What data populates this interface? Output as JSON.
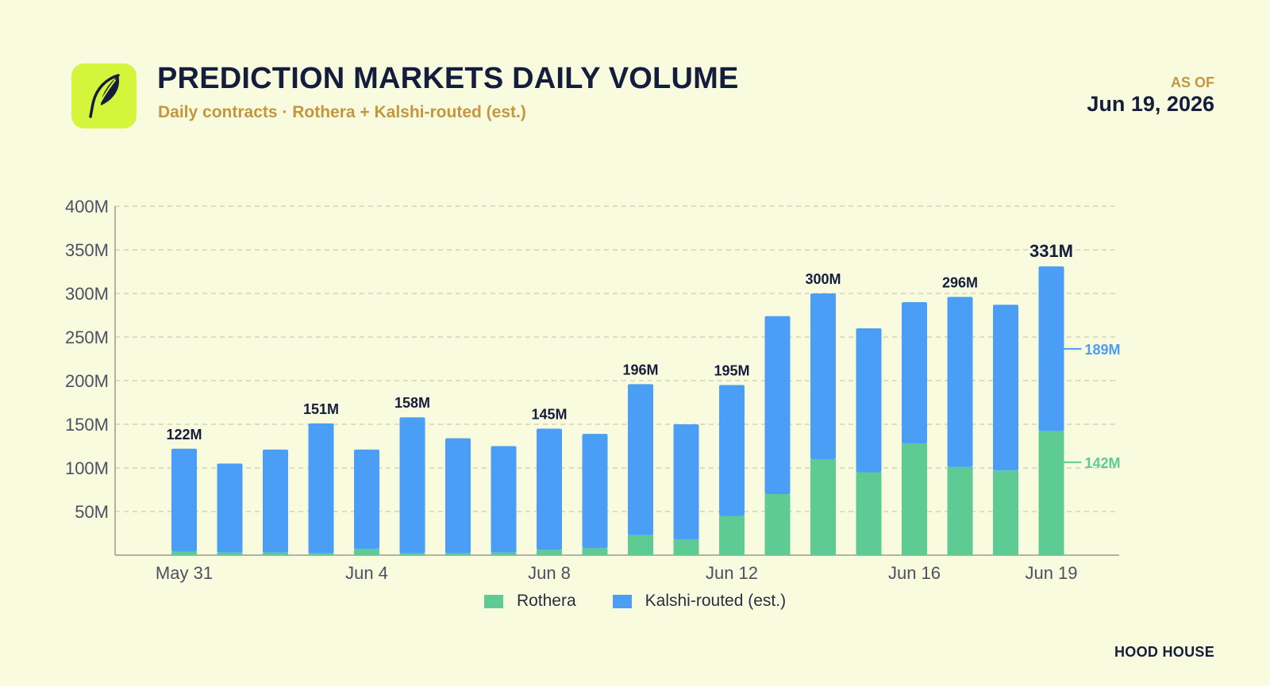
{
  "header": {
    "title": "PREDICTION MARKETS DAILY VOLUME",
    "subtitle": "Daily contracts · Rothera + Kalshi-routed (est.)",
    "asof_label": "AS OF",
    "asof_date": "Jun 19, 2026",
    "logo_icon": "feather-icon"
  },
  "footer": {
    "brand": "HOOD HOUSE"
  },
  "colors": {
    "background": "#f8fbde",
    "logo_bg": "#d4f53c",
    "rothera": "#5ecb94",
    "kalshi": "#4a9ef6",
    "title": "#141d3c",
    "accent": "#c4963e"
  },
  "legend": [
    {
      "label": "Rothera",
      "color": "#5ecb94"
    },
    {
      "label": "Kalshi-routed (est.)",
      "color": "#4a9ef6"
    }
  ],
  "chart_data": {
    "type": "bar",
    "stacked": true,
    "categories": [
      "May 31",
      "Jun 1",
      "Jun 2",
      "Jun 3",
      "Jun 4",
      "Jun 5",
      "Jun 6",
      "Jun 7",
      "Jun 8",
      "Jun 9",
      "Jun 10",
      "Jun 11",
      "Jun 12",
      "Jun 13",
      "Jun 14",
      "Jun 15",
      "Jun 16",
      "Jun 17",
      "Jun 18",
      "Jun 19"
    ],
    "tick_labels": [
      {
        "index": 0,
        "label": "May 31"
      },
      {
        "index": 4,
        "label": "Jun 4"
      },
      {
        "index": 8,
        "label": "Jun 8"
      },
      {
        "index": 12,
        "label": "Jun 12"
      },
      {
        "index": 16,
        "label": "Jun 16"
      },
      {
        "index": 19,
        "label": "Jun 19"
      }
    ],
    "series": [
      {
        "name": "Rothera",
        "values": [
          4,
          3,
          3,
          2,
          7,
          2,
          2,
          3,
          6,
          8,
          23,
          18,
          45,
          70,
          110,
          95,
          128,
          101,
          97,
          142
        ]
      },
      {
        "name": "Kalshi-routed (est.)",
        "values": [
          118,
          102,
          118,
          149,
          114,
          156,
          132,
          122,
          139,
          131,
          173,
          132,
          150,
          204,
          190,
          165,
          162,
          195,
          190,
          189
        ]
      }
    ],
    "total_labels": [
      {
        "index": 0,
        "label": "122M"
      },
      {
        "index": 3,
        "label": "151M"
      },
      {
        "index": 5,
        "label": "158M"
      },
      {
        "index": 8,
        "label": "145M"
      },
      {
        "index": 10,
        "label": "196M"
      },
      {
        "index": 12,
        "label": "195M"
      },
      {
        "index": 14,
        "label": "300M"
      },
      {
        "index": 17,
        "label": "296M"
      },
      {
        "index": 19,
        "label": "331M"
      }
    ],
    "callouts": [
      {
        "series": "Kalshi-routed (est.)",
        "label": "189M"
      },
      {
        "series": "Rothera",
        "label": "142M"
      }
    ],
    "y_ticks": [
      {
        "value": 50,
        "label": "50M"
      },
      {
        "value": 100,
        "label": "100M"
      },
      {
        "value": 150,
        "label": "150M"
      },
      {
        "value": 200,
        "label": "200M"
      },
      {
        "value": 250,
        "label": "250M"
      },
      {
        "value": 300,
        "label": "300M"
      },
      {
        "value": 350,
        "label": "350M"
      },
      {
        "value": 400,
        "label": "400M"
      }
    ],
    "ylim": [
      0,
      400
    ],
    "grid": true,
    "legend_position": "bottom-center"
  }
}
